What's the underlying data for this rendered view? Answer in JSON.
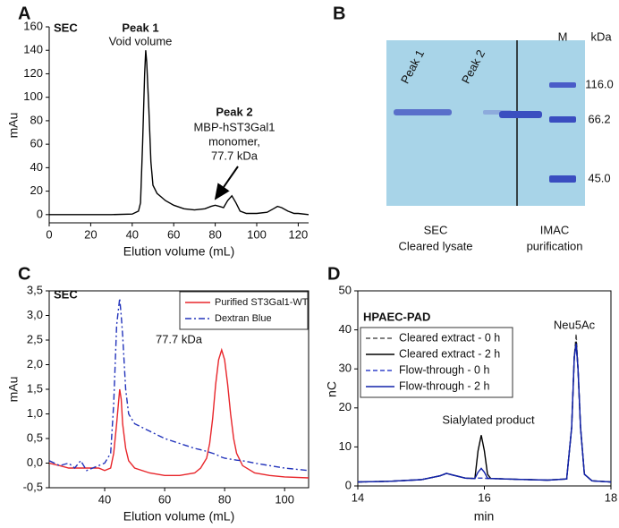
{
  "chart_data": [
    {
      "type": "line",
      "panel": "A",
      "label": "SEC",
      "xlabel": "Elution volume (mL)",
      "ylabel": "mAu",
      "annotations": [
        "Peak 1",
        "Void volume",
        "Peak 2",
        "MBP-hST3Gal1",
        "monomer,",
        "77.7 kDa"
      ],
      "x": [
        0,
        10,
        20,
        30,
        40,
        43,
        44,
        45,
        46,
        46.5,
        47,
        48,
        49,
        50,
        52,
        54,
        56,
        60,
        65,
        70,
        75,
        78,
        80,
        82,
        84,
        86,
        88,
        90,
        92,
        95,
        100,
        105,
        108,
        110,
        112,
        115,
        118,
        120,
        125
      ],
      "values": [
        0,
        0,
        0,
        0,
        0.5,
        3,
        10,
        60,
        120,
        140,
        130,
        90,
        45,
        25,
        18,
        15,
        12,
        8,
        5,
        4,
        5,
        7,
        8,
        7,
        6,
        12,
        16,
        10,
        3,
        1,
        1,
        2,
        5,
        7,
        6,
        3,
        1,
        1,
        0
      ],
      "color": "#000000",
      "frame": false,
      "xlim": [
        0,
        125
      ],
      "xticks": [
        0,
        20,
        40,
        60,
        80,
        100,
        120
      ],
      "ylim": [
        -7,
        160
      ],
      "yticks": [
        0,
        20,
        40,
        60,
        80,
        100,
        120,
        140,
        160
      ]
    },
    {
      "type": "line",
      "panel": "C",
      "label": "SEC",
      "xlabel": "Elution volume (mL)",
      "ylabel": "mAu",
      "annotations": [
        "77.7 kDa"
      ],
      "frame": true,
      "legend": "upper right",
      "x": [
        21.5,
        25,
        28,
        30,
        32,
        34,
        36,
        38,
        40,
        42,
        43,
        44,
        45,
        45.5,
        46,
        47,
        48,
        50,
        55,
        60,
        65,
        70,
        72,
        74,
        75,
        76,
        77,
        78,
        79,
        80,
        81,
        82,
        83,
        84,
        86,
        90,
        95,
        100,
        108
      ],
      "series": [
        {
          "name": "Purified ST3Gal1-WT",
          "color": "#e8262b",
          "dash": "solid",
          "values": [
            0,
            -0.05,
            -0.1,
            -0.1,
            -0.1,
            -0.1,
            -0.1,
            -0.1,
            -0.15,
            -0.1,
            0.2,
            0.8,
            1.5,
            1.3,
            0.8,
            0.3,
            0.05,
            -0.1,
            -0.2,
            -0.25,
            -0.25,
            -0.2,
            -0.1,
            0.1,
            0.4,
            0.9,
            1.6,
            2.1,
            2.3,
            2.1,
            1.6,
            1.0,
            0.5,
            0.2,
            -0.05,
            -0.2,
            -0.25,
            -0.28,
            -0.3
          ]
        },
        {
          "name": "Dextran Blue",
          "color": "#2233bb",
          "dash": "dashdot",
          "values": [
            0.05,
            -0.05,
            0,
            -0.1,
            0.05,
            -0.15,
            -0.1,
            -0.05,
            0,
            0.2,
            1.2,
            2.8,
            3.35,
            3.0,
            2.6,
            1.5,
            1.0,
            0.8,
            0.65,
            0.5,
            0.4,
            0.3,
            0.27,
            0.24,
            0.22,
            0.2,
            0.18,
            0.15,
            0.12,
            0.1,
            0.09,
            0.08,
            0.07,
            0.06,
            0.05,
            0,
            -0.05,
            -0.1,
            -0.15
          ]
        }
      ],
      "xlim": [
        21.5,
        108
      ],
      "xticks": [
        40,
        60,
        80,
        100
      ],
      "ylim": [
        -0.5,
        3.5
      ],
      "yticks": [
        {
          "value": -0.5,
          "label": "-0,5"
        },
        {
          "value": 0,
          "label": "0,0"
        },
        {
          "value": 0.5,
          "label": "0,5"
        },
        {
          "value": 1,
          "label": "1,0"
        },
        {
          "value": 1.5,
          "label": "1,5"
        },
        {
          "value": 2,
          "label": "2,0"
        },
        {
          "value": 2.5,
          "label": "2,5"
        },
        {
          "value": 3,
          "label": "3,0"
        },
        {
          "value": 3.5,
          "label": "3,5"
        }
      ]
    },
    {
      "type": "line",
      "panel": "D",
      "label": "HPAEC-PAD",
      "xlabel": "min",
      "ylabel": "nC",
      "annotations": [
        "Sialylated product",
        "Neu5Ac"
      ],
      "frame": true,
      "legend": "upper left",
      "x": [
        14,
        14.5,
        15,
        15.3,
        15.4,
        15.5,
        15.7,
        15.85,
        15.9,
        15.95,
        16,
        16.05,
        16.1,
        16.5,
        17,
        17.3,
        17.38,
        17.42,
        17.45,
        17.48,
        17.52,
        17.58,
        17.7,
        18
      ],
      "series": [
        {
          "name": "Cleared extract - 0 h",
          "color": "#555555",
          "dash": "dashed",
          "values": [
            1,
            1.2,
            1.6,
            2.6,
            3.2,
            2.8,
            2,
            1.9,
            2,
            2,
            2,
            1.9,
            1.9,
            1.7,
            1.5,
            1.8,
            15,
            33,
            39,
            30,
            15,
            3,
            1.3,
            1
          ]
        },
        {
          "name": "Cleared extract - 2 h",
          "color": "#000000",
          "dash": "solid",
          "values": [
            1,
            1.2,
            1.6,
            2.6,
            3.2,
            2.8,
            2,
            1.9,
            9,
            13,
            9,
            3,
            1.9,
            1.7,
            1.5,
            1.8,
            15,
            33,
            37,
            30,
            15,
            3,
            1.3,
            1
          ]
        },
        {
          "name": "Flow-through - 0 h",
          "color": "#3344cc",
          "dash": "dashed",
          "values": [
            1,
            1.2,
            1.6,
            2.6,
            3.2,
            2.8,
            2,
            1.9,
            2,
            2,
            2,
            1.9,
            1.9,
            1.7,
            1.5,
            1.8,
            15,
            33,
            36,
            30,
            15,
            3,
            1.3,
            1
          ]
        },
        {
          "name": "Flow-through - 2 h",
          "color": "#1122aa",
          "dash": "solid",
          "values": [
            1,
            1.2,
            1.6,
            2.6,
            3.2,
            2.8,
            2,
            1.9,
            3.5,
            4.5,
            3.5,
            2,
            1.9,
            1.7,
            1.5,
            1.8,
            15,
            33,
            36.5,
            30,
            15,
            3,
            1.3,
            1
          ]
        }
      ],
      "xlim": [
        14,
        18
      ],
      "xticks": [
        14,
        16,
        18
      ],
      "ylim": [
        0,
        50
      ],
      "yticks": [
        0,
        10,
        20,
        30,
        40,
        50
      ]
    }
  ],
  "gel": {
    "panel": "B",
    "lanes": [
      "Peak 1",
      "Peak 2"
    ],
    "marker": "M",
    "unit": "kDa",
    "sizes": [
      "116.0",
      "66.2",
      "45.0"
    ],
    "groups": [
      [
        "SEC",
        "Cleared lysate"
      ],
      [
        "IMAC",
        "purification"
      ]
    ]
  }
}
